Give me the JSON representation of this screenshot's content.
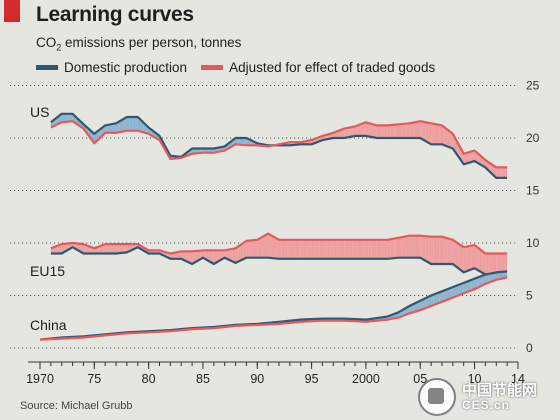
{
  "header": {
    "title": "Learning curves",
    "subtitle_main": "CO",
    "subtitle_sub": "2",
    "subtitle_rest": " emissions per person, tonnes"
  },
  "legend": {
    "domestic_label": "Domestic production",
    "adjusted_label": "Adjusted for effect of traded goods"
  },
  "colors": {
    "domestic": "#2f5872",
    "adjusted": "#e05a5e",
    "fill_domestic_higher": "#8fb5ce",
    "fill_adjusted_higher": "#eea0a0",
    "tag": "#d22b2b"
  },
  "footer": {
    "source": "Source: Michael Grubb"
  },
  "watermark": {
    "cn": "中国节能网",
    "en": "CES.cn"
  },
  "chart_data": {
    "type": "line",
    "x_range": [
      1970,
      2014
    ],
    "y_range": [
      0,
      25
    ],
    "y_ticks": [
      0,
      5,
      10,
      15,
      20,
      25
    ],
    "x_tick_labels": [
      {
        "year": 1970,
        "label": "1970"
      },
      {
        "year": 1975,
        "label": "75"
      },
      {
        "year": 1980,
        "label": "80"
      },
      {
        "year": 1985,
        "label": "85"
      },
      {
        "year": 1990,
        "label": "90"
      },
      {
        "year": 1995,
        "label": "95"
      },
      {
        "year": 2000,
        "label": "2000"
      },
      {
        "year": 2005,
        "label": "05"
      },
      {
        "year": 2010,
        "label": "10"
      },
      {
        "year": 2014,
        "label": "14"
      }
    ],
    "grid": true,
    "regions": [
      {
        "label": "US",
        "domestic": [
          [
            1971,
            21.5
          ],
          [
            1972,
            22.3
          ],
          [
            1973,
            22.3
          ],
          [
            1974,
            21.3
          ],
          [
            1975,
            20.4
          ],
          [
            1976,
            21.2
          ],
          [
            1977,
            21.4
          ],
          [
            1978,
            22.0
          ],
          [
            1979,
            22.0
          ],
          [
            1980,
            21.0
          ],
          [
            1981,
            20.2
          ],
          [
            1982,
            18.3
          ],
          [
            1983,
            18.2
          ],
          [
            1984,
            19.0
          ],
          [
            1985,
            19.0
          ],
          [
            1986,
            19.0
          ],
          [
            1987,
            19.2
          ],
          [
            1988,
            20.0
          ],
          [
            1989,
            20.0
          ],
          [
            1990,
            19.5
          ],
          [
            1991,
            19.3
          ],
          [
            1992,
            19.3
          ],
          [
            1993,
            19.3
          ],
          [
            1994,
            19.4
          ],
          [
            1995,
            19.4
          ],
          [
            1996,
            19.8
          ],
          [
            1997,
            20.0
          ],
          [
            1998,
            20.0
          ],
          [
            1999,
            20.2
          ],
          [
            2000,
            20.2
          ],
          [
            2001,
            20.0
          ],
          [
            2002,
            20.0
          ],
          [
            2003,
            20.0
          ],
          [
            2004,
            20.0
          ],
          [
            2005,
            20.0
          ],
          [
            2006,
            19.4
          ],
          [
            2007,
            19.4
          ],
          [
            2008,
            19.0
          ],
          [
            2009,
            17.5
          ],
          [
            2010,
            17.8
          ],
          [
            2011,
            17.2
          ],
          [
            2012,
            16.2
          ],
          [
            2013,
            16.2
          ]
        ],
        "adjusted": [
          [
            1971,
            21.0
          ],
          [
            1972,
            21.5
          ],
          [
            1973,
            21.6
          ],
          [
            1974,
            20.9
          ],
          [
            1975,
            19.5
          ],
          [
            1976,
            20.5
          ],
          [
            1977,
            20.5
          ],
          [
            1978,
            20.7
          ],
          [
            1979,
            20.7
          ],
          [
            1980,
            20.4
          ],
          [
            1981,
            19.8
          ],
          [
            1982,
            18.0
          ],
          [
            1983,
            18.1
          ],
          [
            1984,
            18.5
          ],
          [
            1985,
            18.6
          ],
          [
            1986,
            18.6
          ],
          [
            1987,
            18.8
          ],
          [
            1988,
            19.4
          ],
          [
            1989,
            19.3
          ],
          [
            1990,
            19.3
          ],
          [
            1991,
            19.2
          ],
          [
            1992,
            19.4
          ],
          [
            1993,
            19.6
          ],
          [
            1994,
            19.6
          ],
          [
            1995,
            19.8
          ],
          [
            1996,
            20.2
          ],
          [
            1997,
            20.5
          ],
          [
            1998,
            20.9
          ],
          [
            1999,
            21.1
          ],
          [
            2000,
            21.5
          ],
          [
            2001,
            21.2
          ],
          [
            2002,
            21.2
          ],
          [
            2003,
            21.3
          ],
          [
            2004,
            21.4
          ],
          [
            2005,
            21.6
          ],
          [
            2006,
            21.4
          ],
          [
            2007,
            21.2
          ],
          [
            2008,
            20.4
          ],
          [
            2009,
            18.5
          ],
          [
            2010,
            18.8
          ],
          [
            2011,
            17.9
          ],
          [
            2012,
            17.2
          ],
          [
            2013,
            17.2
          ]
        ]
      },
      {
        "label": "EU15",
        "domestic": [
          [
            1971,
            9.0
          ],
          [
            1972,
            9.0
          ],
          [
            1973,
            9.6
          ],
          [
            1974,
            9.0
          ],
          [
            1975,
            9.0
          ],
          [
            1976,
            9.0
          ],
          [
            1977,
            9.0
          ],
          [
            1978,
            9.1
          ],
          [
            1979,
            9.6
          ],
          [
            1980,
            9.0
          ],
          [
            1981,
            9.0
          ],
          [
            1982,
            8.5
          ],
          [
            1983,
            8.5
          ],
          [
            1984,
            8.0
          ],
          [
            1985,
            8.6
          ],
          [
            1986,
            8.0
          ],
          [
            1987,
            8.6
          ],
          [
            1988,
            8.1
          ],
          [
            1989,
            8.6
          ],
          [
            1990,
            8.6
          ],
          [
            1991,
            8.6
          ],
          [
            1992,
            8.5
          ],
          [
            1993,
            8.5
          ],
          [
            1994,
            8.5
          ],
          [
            1995,
            8.5
          ],
          [
            1996,
            8.5
          ],
          [
            1997,
            8.5
          ],
          [
            1998,
            8.5
          ],
          [
            1999,
            8.5
          ],
          [
            2000,
            8.5
          ],
          [
            2001,
            8.5
          ],
          [
            2002,
            8.5
          ],
          [
            2003,
            8.6
          ],
          [
            2004,
            8.6
          ],
          [
            2005,
            8.6
          ],
          [
            2006,
            8.0
          ],
          [
            2007,
            8.0
          ],
          [
            2008,
            8.0
          ],
          [
            2009,
            7.2
          ],
          [
            2010,
            7.6
          ],
          [
            2011,
            7.0
          ],
          [
            2012,
            7.0
          ],
          [
            2013,
            6.8
          ]
        ],
        "adjusted": [
          [
            1971,
            9.5
          ],
          [
            1972,
            9.9
          ],
          [
            1973,
            10.0
          ],
          [
            1974,
            9.9
          ],
          [
            1975,
            9.5
          ],
          [
            1976,
            9.9
          ],
          [
            1977,
            9.9
          ],
          [
            1978,
            9.9
          ],
          [
            1979,
            9.9
          ],
          [
            1980,
            9.3
          ],
          [
            1981,
            9.3
          ],
          [
            1982,
            9.0
          ],
          [
            1983,
            9.2
          ],
          [
            1984,
            9.2
          ],
          [
            1985,
            9.3
          ],
          [
            1986,
            9.3
          ],
          [
            1987,
            9.3
          ],
          [
            1988,
            9.5
          ],
          [
            1989,
            10.2
          ],
          [
            1990,
            10.3
          ],
          [
            1991,
            10.9
          ],
          [
            1992,
            10.3
          ],
          [
            1993,
            10.3
          ],
          [
            1994,
            10.3
          ],
          [
            1995,
            10.3
          ],
          [
            1996,
            10.3
          ],
          [
            1997,
            10.3
          ],
          [
            1998,
            10.3
          ],
          [
            1999,
            10.3
          ],
          [
            2000,
            10.3
          ],
          [
            2001,
            10.3
          ],
          [
            2002,
            10.3
          ],
          [
            2003,
            10.5
          ],
          [
            2004,
            10.7
          ],
          [
            2005,
            10.7
          ],
          [
            2006,
            10.6
          ],
          [
            2007,
            10.6
          ],
          [
            2008,
            10.3
          ],
          [
            2009,
            9.6
          ],
          [
            2010,
            9.8
          ],
          [
            2011,
            9.0
          ],
          [
            2012,
            9.0
          ],
          [
            2013,
            9.0
          ]
        ]
      },
      {
        "label": "China",
        "domestic": [
          [
            1970,
            0.8
          ],
          [
            1972,
            1.0
          ],
          [
            1974,
            1.1
          ],
          [
            1976,
            1.3
          ],
          [
            1978,
            1.5
          ],
          [
            1980,
            1.6
          ],
          [
            1982,
            1.7
          ],
          [
            1984,
            1.9
          ],
          [
            1986,
            2.0
          ],
          [
            1988,
            2.2
          ],
          [
            1990,
            2.3
          ],
          [
            1992,
            2.5
          ],
          [
            1994,
            2.7
          ],
          [
            1996,
            2.8
          ],
          [
            1998,
            2.8
          ],
          [
            2000,
            2.7
          ],
          [
            2002,
            3.0
          ],
          [
            2003,
            3.4
          ],
          [
            2004,
            4.0
          ],
          [
            2005,
            4.5
          ],
          [
            2006,
            5.0
          ],
          [
            2007,
            5.4
          ],
          [
            2008,
            5.8
          ],
          [
            2009,
            6.2
          ],
          [
            2010,
            6.6
          ],
          [
            2011,
            7.0
          ],
          [
            2012,
            7.2
          ],
          [
            2013,
            7.3
          ]
        ],
        "adjusted": [
          [
            1970,
            0.8
          ],
          [
            1972,
            0.9
          ],
          [
            1974,
            1.0
          ],
          [
            1976,
            1.2
          ],
          [
            1978,
            1.4
          ],
          [
            1980,
            1.5
          ],
          [
            1982,
            1.6
          ],
          [
            1984,
            1.8
          ],
          [
            1986,
            1.9
          ],
          [
            1988,
            2.1
          ],
          [
            1990,
            2.2
          ],
          [
            1992,
            2.3
          ],
          [
            1994,
            2.5
          ],
          [
            1996,
            2.6
          ],
          [
            1998,
            2.6
          ],
          [
            2000,
            2.5
          ],
          [
            2002,
            2.7
          ],
          [
            2003,
            2.9
          ],
          [
            2004,
            3.3
          ],
          [
            2005,
            3.6
          ],
          [
            2006,
            4.0
          ],
          [
            2007,
            4.4
          ],
          [
            2008,
            4.8
          ],
          [
            2009,
            5.2
          ],
          [
            2010,
            5.6
          ],
          [
            2011,
            6.1
          ],
          [
            2012,
            6.5
          ],
          [
            2013,
            6.7
          ]
        ]
      }
    ]
  }
}
